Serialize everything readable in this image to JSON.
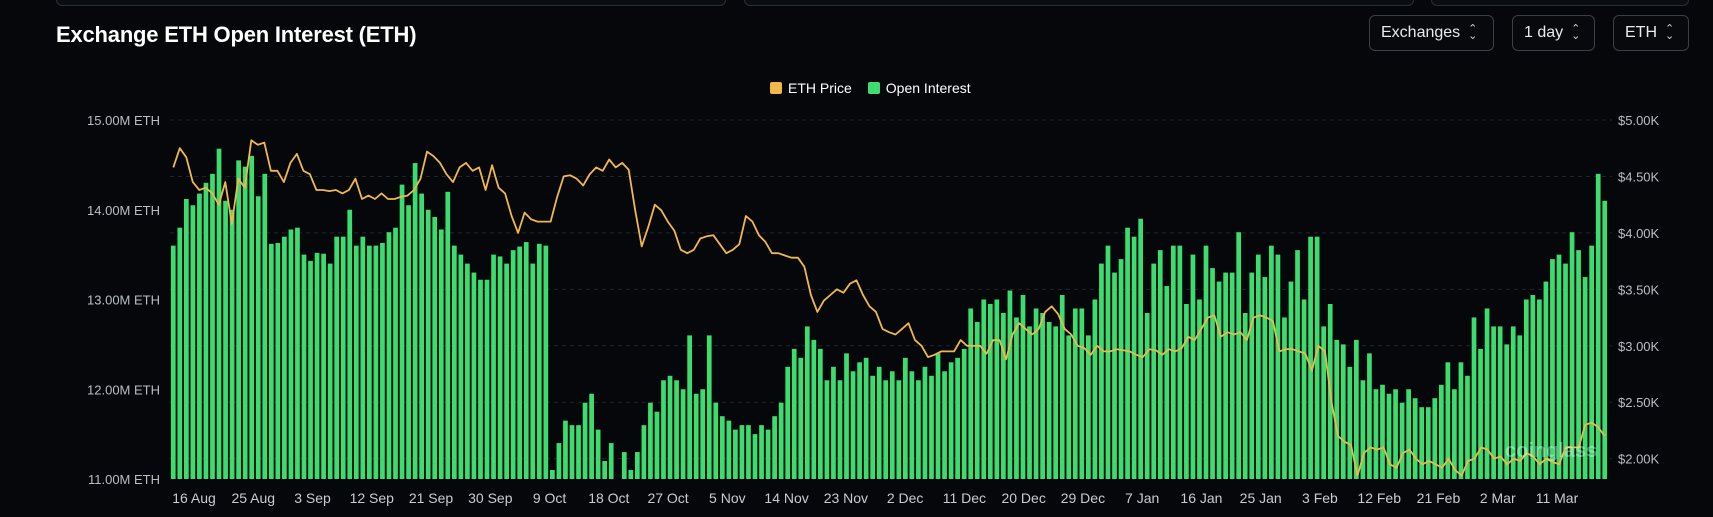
{
  "header": {
    "title": "Exchange ETH Open Interest (ETH)",
    "exchanges_label": "Exchanges",
    "interval_label": "1 day",
    "unit_label": "ETH"
  },
  "legend": [
    {
      "label": "ETH Price",
      "color": "#f0b84a"
    },
    {
      "label": "Open Interest",
      "color": "#3ddc6e"
    }
  ],
  "watermark": "coinglass",
  "chart_data": {
    "type": "bar",
    "title": "Exchange ETH Open Interest (ETH)",
    "grid": true,
    "legend_position": "top-center",
    "left_axis": {
      "ticks": [
        "15.00M ETH",
        "14.00M ETH",
        "13.00M ETH",
        "12.00M ETH",
        "11.00M ETH"
      ],
      "range": [
        11.0,
        15.0
      ],
      "unit": "M ETH"
    },
    "right_axis": {
      "ticks": [
        "$5.00K",
        "$4.50K",
        "$4.00K",
        "$3.50K",
        "$3.00K",
        "$2.50K",
        "$2.00K"
      ],
      "range": [
        1.82,
        5.0
      ],
      "unit": "$K"
    },
    "x_labels": [
      "16 Aug",
      "25 Aug",
      "3 Sep",
      "12 Sep",
      "21 Sep",
      "30 Sep",
      "9 Oct",
      "18 Oct",
      "27 Oct",
      "5 Nov",
      "14 Nov",
      "23 Nov",
      "2 Dec",
      "11 Dec",
      "20 Dec",
      "29 Dec",
      "7 Jan",
      "16 Jan",
      "25 Jan",
      "3 Feb",
      "12 Feb",
      "21 Feb",
      "2 Mar",
      "11 Mar"
    ],
    "series": [
      {
        "name": "Open Interest",
        "axis": "left",
        "type": "bar",
        "color": "#3ddc6e",
        "values": [
          13.6,
          13.8,
          14.12,
          14.05,
          14.18,
          14.3,
          14.4,
          14.68,
          14.1,
          14.0,
          14.55,
          14.48,
          14.6,
          14.15,
          14.4,
          13.62,
          13.63,
          13.7,
          13.78,
          13.8,
          13.5,
          13.43,
          13.52,
          13.51,
          13.4,
          13.7,
          13.7,
          14.0,
          13.6,
          13.7,
          13.6,
          13.6,
          13.63,
          13.75,
          13.8,
          14.28,
          14.05,
          14.52,
          14.18,
          14.0,
          13.92,
          13.78,
          14.2,
          13.6,
          13.5,
          13.4,
          13.3,
          13.22,
          13.22,
          13.5,
          13.48,
          13.4,
          13.55,
          13.59,
          13.64,
          13.4,
          13.62,
          13.6,
          11.1,
          11.4,
          11.65,
          11.6,
          11.6,
          11.85,
          11.95,
          11.55,
          11.2,
          11.4,
          11.0,
          11.3,
          11.1,
          11.3,
          11.6,
          11.85,
          11.75,
          12.1,
          12.15,
          12.1,
          12.0,
          12.6,
          11.95,
          12.0,
          12.6,
          11.85,
          11.7,
          11.65,
          11.55,
          11.6,
          11.6,
          11.5,
          11.6,
          11.55,
          11.7,
          11.85,
          12.25,
          12.45,
          12.35,
          12.7,
          12.55,
          12.45,
          12.1,
          12.25,
          12.1,
          12.4,
          12.2,
          12.3,
          12.35,
          12.15,
          12.25,
          12.1,
          12.2,
          12.1,
          12.35,
          12.2,
          12.1,
          12.25,
          12.15,
          12.4,
          12.2,
          12.3,
          12.35,
          12.45,
          12.9,
          12.75,
          13.0,
          12.95,
          13.0,
          12.85,
          13.1,
          12.8,
          13.05,
          12.7,
          12.9,
          12.85,
          12.75,
          12.7,
          13.05,
          12.6,
          12.9,
          12.9,
          12.6,
          13.0,
          13.4,
          13.6,
          13.3,
          13.45,
          13.8,
          13.7,
          13.9,
          12.85,
          13.4,
          13.55,
          13.15,
          13.6,
          13.6,
          12.95,
          13.5,
          13.0,
          13.6,
          13.35,
          13.2,
          13.3,
          13.3,
          13.75,
          12.85,
          13.3,
          13.5,
          13.25,
          13.6,
          13.5,
          12.8,
          13.2,
          13.55,
          13.0,
          13.7,
          13.7,
          12.7,
          12.95,
          12.55,
          12.5,
          12.25,
          12.55,
          12.1,
          12.4,
          12.0,
          12.05,
          11.95,
          12.0,
          11.85,
          12.0,
          11.9,
          11.8,
          11.8,
          11.9,
          12.05,
          12.3,
          12.0,
          12.3,
          12.15,
          12.8,
          12.45,
          12.9,
          12.7,
          12.7,
          12.5,
          12.7,
          12.6,
          13.0,
          13.05,
          13.0,
          13.2,
          13.45,
          13.5,
          13.4,
          13.75,
          13.55,
          13.25,
          13.6,
          14.4,
          14.1
        ]
      },
      {
        "name": "ETH Price",
        "axis": "right",
        "type": "line",
        "color": "#f0b84a",
        "values": [
          4.58,
          4.75,
          4.67,
          4.45,
          4.38,
          4.4,
          4.35,
          4.25,
          4.45,
          4.08,
          4.48,
          4.4,
          4.82,
          4.78,
          4.8,
          4.55,
          4.55,
          4.45,
          4.62,
          4.7,
          4.55,
          4.52,
          4.38,
          4.38,
          4.37,
          4.38,
          4.35,
          4.38,
          4.48,
          4.3,
          4.33,
          4.3,
          4.35,
          4.3,
          4.3,
          4.32,
          4.33,
          4.38,
          4.48,
          4.72,
          4.68,
          4.62,
          4.52,
          4.45,
          4.58,
          4.62,
          4.55,
          4.58,
          4.38,
          4.6,
          4.4,
          4.35,
          4.15,
          4.0,
          4.18,
          4.12,
          4.1,
          4.1,
          4.1,
          4.32,
          4.5,
          4.51,
          4.48,
          4.42,
          4.52,
          4.58,
          4.55,
          4.65,
          4.58,
          4.62,
          4.56,
          4.2,
          3.88,
          4.05,
          4.25,
          4.2,
          4.1,
          4.02,
          3.85,
          3.82,
          3.85,
          3.95,
          3.97,
          3.98,
          3.9,
          3.82,
          3.85,
          3.9,
          4.15,
          4.1,
          3.98,
          3.92,
          3.82,
          3.82,
          3.8,
          3.78,
          3.78,
          3.7,
          3.45,
          3.3,
          3.4,
          3.45,
          3.5,
          3.47,
          3.55,
          3.58,
          3.45,
          3.35,
          3.3,
          3.15,
          3.12,
          3.1,
          3.15,
          3.2,
          3.05,
          3.0,
          2.9,
          2.92,
          2.95,
          2.95,
          2.95,
          3.05,
          3.0,
          3.0,
          3.0,
          2.93,
          3.05,
          3.05,
          2.88,
          3.1,
          3.2,
          3.15,
          3.1,
          3.15,
          3.3,
          3.35,
          3.28,
          3.15,
          3.1,
          3.0,
          2.98,
          2.92,
          3.0,
          2.95,
          2.95,
          2.97,
          2.96,
          2.95,
          2.92,
          2.9,
          2.97,
          2.96,
          2.92,
          2.97,
          2.95,
          2.98,
          3.08,
          3.05,
          3.15,
          3.25,
          3.27,
          3.08,
          3.12,
          3.1,
          3.12,
          3.05,
          3.25,
          3.27,
          3.25,
          3.22,
          2.95,
          2.97,
          2.97,
          2.95,
          2.93,
          2.78,
          3.0,
          2.95,
          2.5,
          2.2,
          2.15,
          2.12,
          1.85,
          2.05,
          2.1,
          2.08,
          2.1,
          1.95,
          1.92,
          2.05,
          2.08,
          2.0,
          1.95,
          1.98,
          1.95,
          1.92,
          2.0,
          1.9,
          1.85,
          1.98,
          2.0,
          2.1,
          2.08,
          2.0,
          2.02,
          1.95,
          2.0,
          1.98,
          2.05,
          2.02,
          1.95,
          2.0,
          1.97,
          1.95,
          2.1,
          2.1,
          2.1,
          2.3,
          2.32,
          2.28,
          2.2
        ]
      }
    ]
  }
}
